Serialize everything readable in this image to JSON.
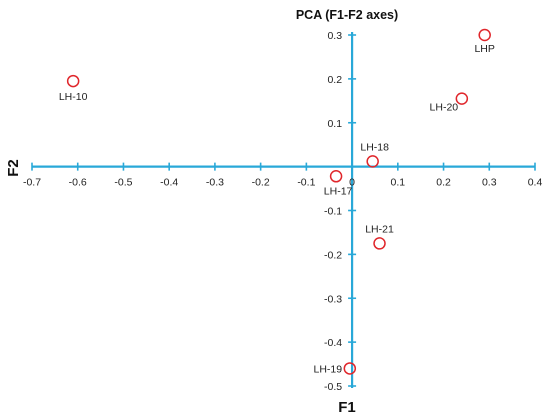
{
  "chart_data": {
    "type": "scatter",
    "title": "PCA (F1-F2 axes)",
    "xlabel": "F1",
    "ylabel": "F2",
    "xlim": [
      -0.7,
      0.4
    ],
    "ylim": [
      -0.5,
      0.3
    ],
    "xticks": [
      -0.7,
      -0.6,
      -0.5,
      -0.4,
      -0.3,
      -0.2,
      -0.1,
      0,
      0.1,
      0.2,
      0.3,
      0.4
    ],
    "xtick_labels": [
      "-0.7",
      "-0.6",
      "-0.5",
      "-0.4",
      "-0.3",
      "-0.2",
      "-0.1",
      "0",
      "0.1",
      "0.2",
      "0.3",
      "0.4"
    ],
    "yticks": [
      0.3,
      0.2,
      0.1,
      -0.1,
      -0.2,
      -0.3,
      -0.4,
      -0.5
    ],
    "ytick_labels": [
      "0.3",
      "0.2",
      "0.1",
      "-0.1",
      "-0.2",
      "-0.3",
      "-0.4",
      "-0.5"
    ],
    "grid": false,
    "axis_color": "#29a8d8",
    "marker_color": "#e0262b",
    "points": [
      {
        "label": "LHP",
        "x": 0.29,
        "y": 0.3
      },
      {
        "label": "LH-10",
        "x": -0.61,
        "y": 0.195
      },
      {
        "label": "LH-20",
        "x": 0.24,
        "y": 0.155
      },
      {
        "label": "LH-18",
        "x": 0.045,
        "y": 0.012
      },
      {
        "label": "LH-17",
        "x": -0.035,
        "y": -0.022
      },
      {
        "label": "LH-21",
        "x": 0.06,
        "y": -0.175
      },
      {
        "label": "LH-19",
        "x": -0.005,
        "y": -0.46
      }
    ]
  }
}
